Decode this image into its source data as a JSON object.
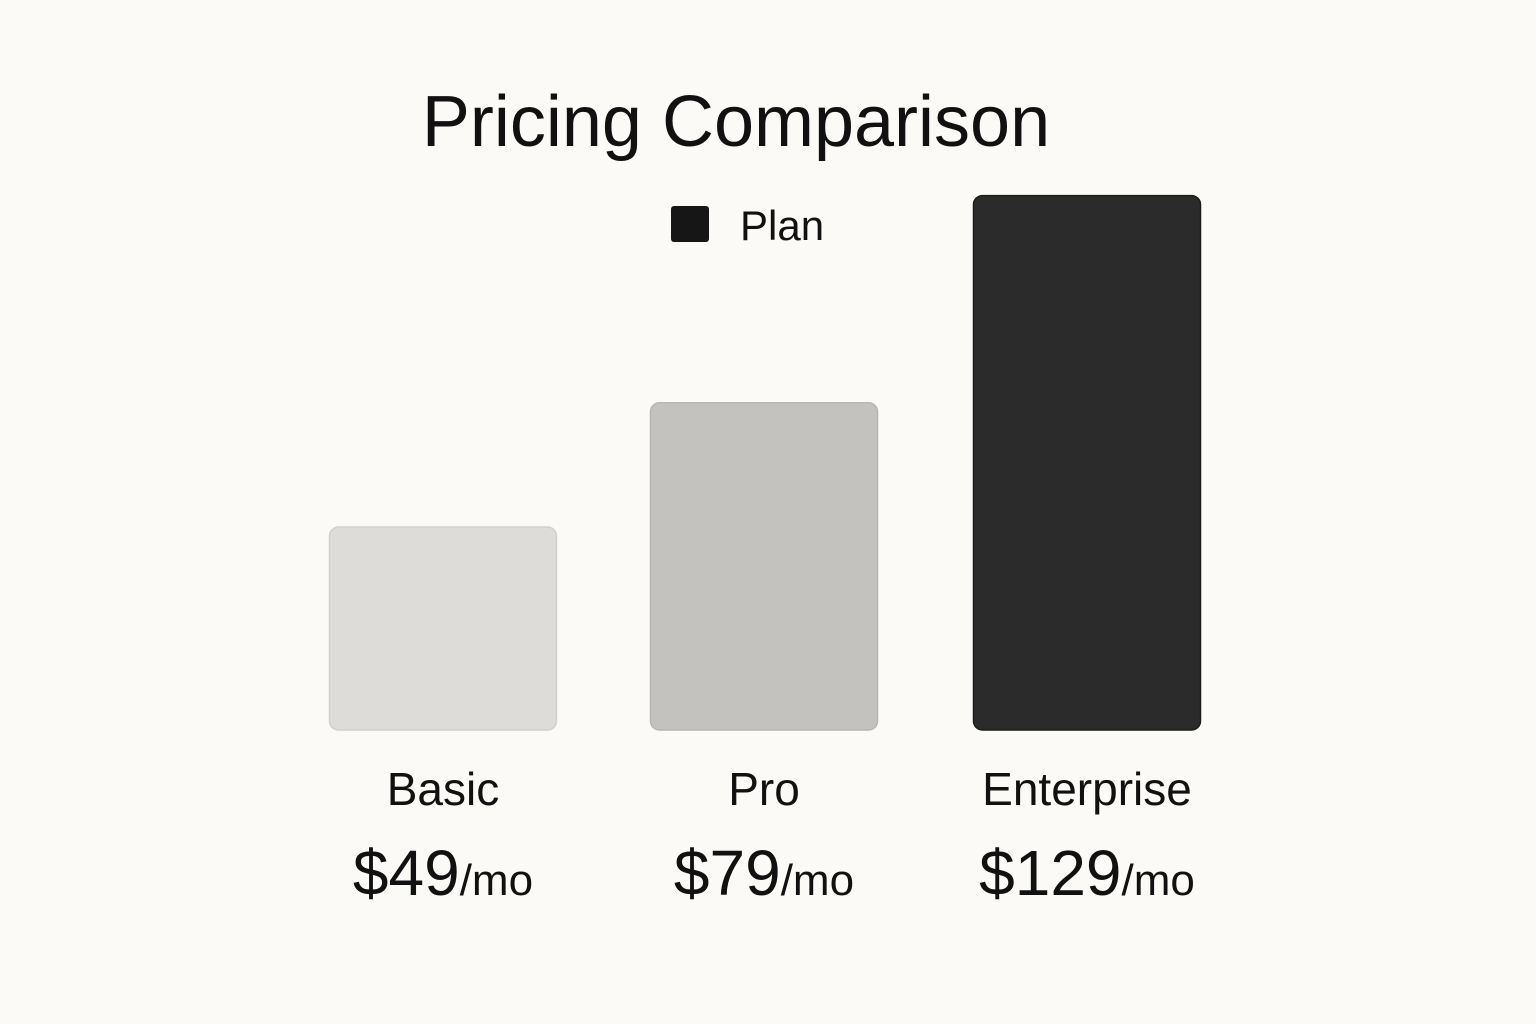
{
  "chart_data": {
    "type": "bar",
    "title": "Pricing Comparison",
    "legend": {
      "label": "Plan",
      "position": "top-center",
      "color": "#161616"
    },
    "categories": [
      "Basic",
      "Pro",
      "Enterprise"
    ],
    "values": [
      49,
      79,
      129
    ],
    "price_labels": [
      "$49",
      "$79",
      "$129"
    ],
    "unit_label": "/mo",
    "bar_colors": [
      "#dedcd8",
      "#c4c2be",
      "#2b2b2b"
    ],
    "bar_stroke_colors": [
      "#d2d0cc",
      "#b8b6b2",
      "#1c1c1c"
    ],
    "ylim": [
      0,
      140
    ],
    "grid": false,
    "xlabel": "",
    "ylabel": ""
  }
}
